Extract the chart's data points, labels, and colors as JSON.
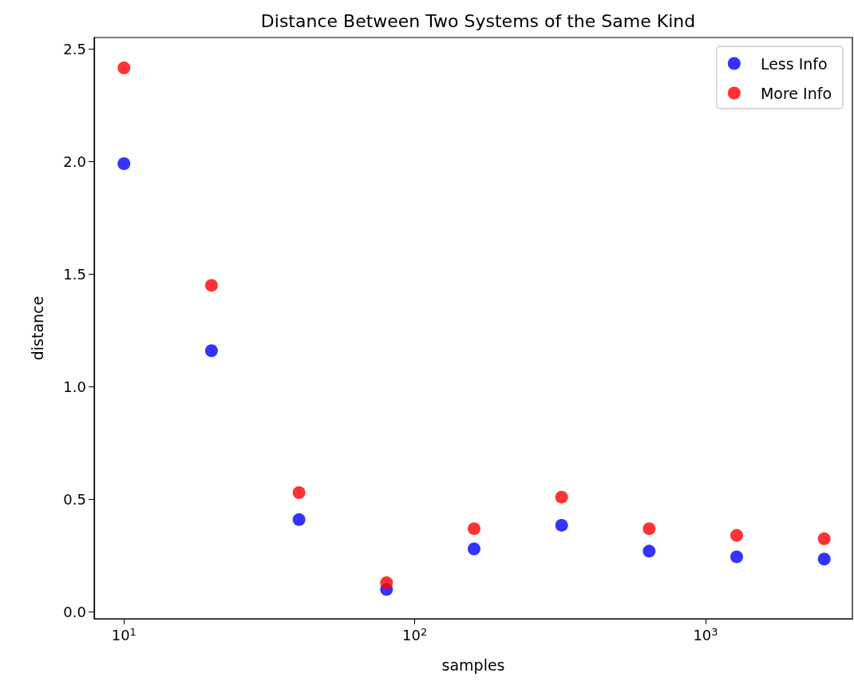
{
  "chart_data": {
    "type": "scatter",
    "title": "Distance Between Two Systems of the Same Kind",
    "xlabel": "samples",
    "ylabel": "distance",
    "x": [
      10,
      20,
      40,
      80,
      160,
      320,
      640,
      1280,
      2560
    ],
    "series": [
      {
        "name": "Less Info",
        "color": "#0000ff",
        "values": [
          1.99,
          1.16,
          0.41,
          0.1,
          0.28,
          0.385,
          0.27,
          0.245,
          0.235
        ]
      },
      {
        "name": "More Info",
        "color": "#ff0000",
        "values": [
          2.415,
          1.45,
          0.53,
          0.13,
          0.37,
          0.51,
          0.37,
          0.34,
          0.325
        ]
      }
    ],
    "log": "x",
    "xlim": [
      7.9,
      3200
    ],
    "xticks": [
      {
        "value": 10,
        "label": "10$^{1}$"
      },
      {
        "value": 100,
        "label": "10$^{2}$"
      },
      {
        "value": 1000,
        "label": "10$^{3}$"
      }
    ],
    "ylim": [
      -0.03,
      2.55
    ],
    "yticks": [
      {
        "value": 0,
        "label": "0.0"
      },
      0.5,
      {
        "value": 1,
        "label": "1.0"
      },
      1.5,
      {
        "value": 2,
        "label": "2.0"
      },
      2.5
    ],
    "grid": false,
    "legend": "top right",
    "marker": "circle"
  }
}
